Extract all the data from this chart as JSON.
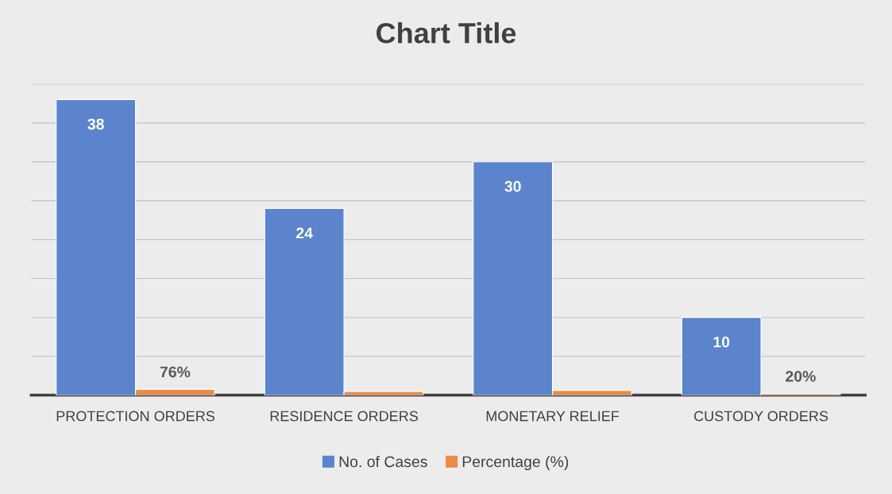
{
  "chart_data": {
    "type": "bar",
    "title": "Chart Title",
    "categories": [
      "PROTECTION ORDERS",
      "RESIDENCE ORDERS",
      "MONETARY RELIEF",
      "CUSTODY ORDERS"
    ],
    "series": [
      {
        "name": "No. of Cases",
        "color": "#5b84cc",
        "values": [
          38,
          24,
          30,
          10
        ],
        "value_labels": [
          "38",
          "24",
          "30",
          "10"
        ]
      },
      {
        "name": "Percentage (%)",
        "color": "#ed8a43",
        "values": [
          0.76,
          0.48,
          0.6,
          0.2
        ],
        "value_labels": [
          "76%",
          null,
          null,
          "20%"
        ]
      }
    ],
    "ylim": [
      0,
      40
    ],
    "yticks": [
      {
        "value": 0,
        "label": null
      },
      {
        "value": 5,
        "label": null
      },
      {
        "value": 10,
        "label": null
      },
      {
        "value": 15,
        "label": null
      },
      {
        "value": 20,
        "label": null
      },
      {
        "value": 25,
        "label": null
      },
      {
        "value": 30,
        "label": null
      },
      {
        "value": 35,
        "label": null
      },
      {
        "value": 40,
        "label": null
      }
    ],
    "grid": "y",
    "legend": "bottom",
    "tick_labels": "x"
  }
}
